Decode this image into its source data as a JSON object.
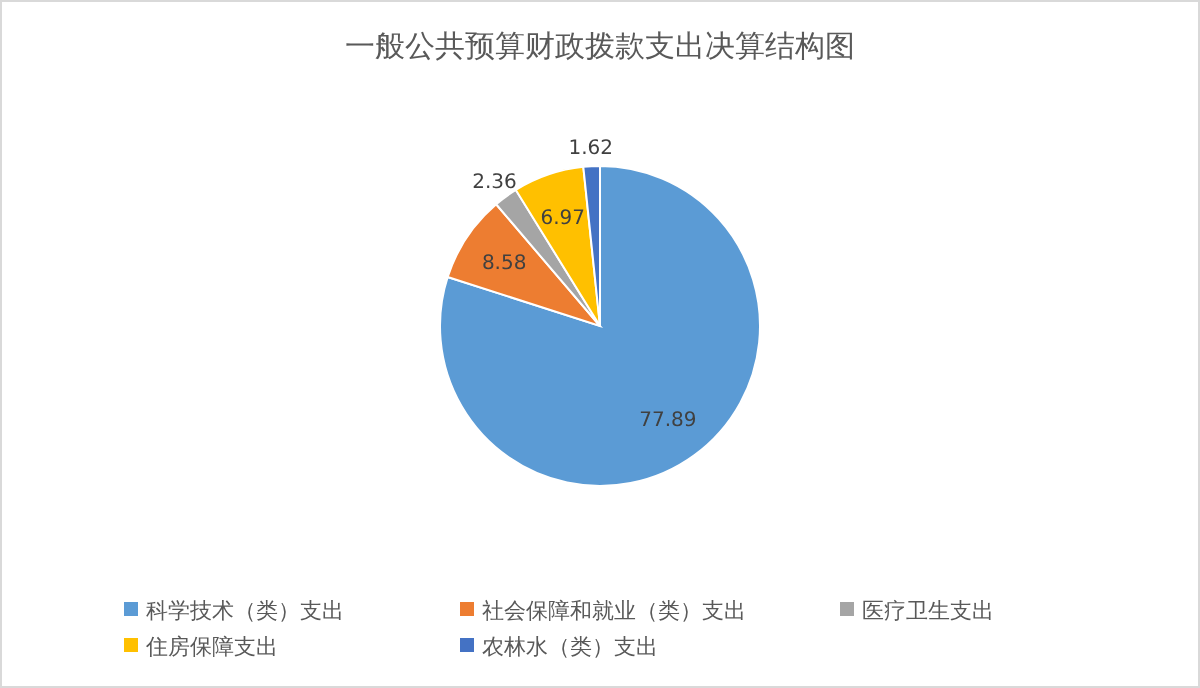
{
  "chart_data": {
    "type": "pie",
    "title": "一般公共预算财政拨款支出决算结构图",
    "categories": [
      "科学技术（类）支出",
      "社会保障和就业（类）支出",
      "医疗卫生支出",
      "住房保障支出",
      "农林水（类）支出"
    ],
    "values": [
      77.89,
      8.58,
      2.36,
      6.97,
      1.62
    ],
    "colors": [
      "#5b9bd5",
      "#ed7d31",
      "#a5a5a5",
      "#ffc000",
      "#4472c4"
    ],
    "data_labels": true,
    "legend": "bottom"
  }
}
